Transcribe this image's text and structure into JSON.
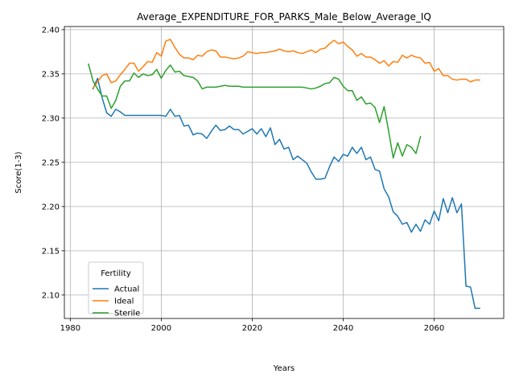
{
  "chart_data": {
    "type": "line",
    "title": "Average_EXPENDITURE_FOR_PARKS_Male_Below_Average_IQ",
    "xlabel": "Years",
    "ylabel": "Score(1-3)",
    "xlim": [
      1978.7,
      2075.3
    ],
    "ylim": [
      2.0735,
      2.4035
    ],
    "x_ticks": [
      1980,
      2000,
      2020,
      2040,
      2060
    ],
    "y_ticks": [
      2.1,
      2.15,
      2.2,
      2.25,
      2.3,
      2.35,
      2.4
    ],
    "x_tick_labels": [
      "1980",
      "2000",
      "2020",
      "2040",
      "2060"
    ],
    "y_tick_labels": [
      "2.10",
      "2.15",
      "2.20",
      "2.25",
      "2.30",
      "2.35",
      "2.40"
    ],
    "grid": true,
    "legend": {
      "title": "Fertility",
      "placement": "lower-left"
    },
    "series": [
      {
        "name": "Actual",
        "color": "#1f77b4",
        "x": [
          1985,
          1986,
          1987,
          1988,
          1989,
          1990,
          1991,
          1992,
          1993,
          1994,
          1995,
          1996,
          1997,
          1998,
          1999,
          2000,
          2001,
          2002,
          2003,
          2004,
          2005,
          2006,
          2007,
          2008,
          2009,
          2010,
          2011,
          2012,
          2013,
          2014,
          2015,
          2016,
          2017,
          2018,
          2019,
          2020,
          2021,
          2022,
          2023,
          2024,
          2025,
          2026,
          2027,
          2028,
          2029,
          2030,
          2031,
          2032,
          2033,
          2034,
          2035,
          2036,
          2037,
          2038,
          2039,
          2040,
          2041,
          2042,
          2043,
          2044,
          2045,
          2046,
          2047,
          2048,
          2049,
          2050,
          2051,
          2052,
          2053,
          2054,
          2055,
          2056,
          2057,
          2058,
          2059,
          2060,
          2061,
          2062,
          2063,
          2064,
          2065,
          2066,
          2067,
          2068,
          2069,
          2070
        ],
        "values": [
          2.333,
          2.345,
          2.323,
          2.306,
          2.302,
          2.31,
          2.307,
          2.303,
          2.303,
          2.303,
          2.303,
          2.303,
          2.303,
          2.303,
          2.303,
          2.303,
          2.302,
          2.31,
          2.302,
          2.303,
          2.291,
          2.292,
          2.281,
          2.283,
          2.282,
          2.277,
          2.285,
          2.292,
          2.286,
          2.287,
          2.291,
          2.287,
          2.287,
          2.282,
          2.285,
          2.288,
          2.282,
          2.288,
          2.279,
          2.289,
          2.27,
          2.276,
          2.265,
          2.267,
          2.253,
          2.257,
          2.253,
          2.249,
          2.239,
          2.231,
          2.231,
          2.232,
          2.245,
          2.256,
          2.251,
          2.259,
          2.257,
          2.267,
          2.26,
          2.267,
          2.253,
          2.256,
          2.242,
          2.24,
          2.22,
          2.211,
          2.194,
          2.189,
          2.18,
          2.182,
          2.171,
          2.18,
          2.172,
          2.185,
          2.18,
          2.195,
          2.184,
          2.209,
          2.193,
          2.21,
          2.193,
          2.203,
          2.11,
          2.109,
          2.085,
          2.085
        ]
      },
      {
        "name": "Ideal",
        "color": "#ff7f0e",
        "x": [
          1985,
          1986,
          1987,
          1988,
          1989,
          1990,
          1991,
          1992,
          1993,
          1994,
          1995,
          1996,
          1997,
          1998,
          1999,
          2000,
          2001,
          2002,
          2003,
          2004,
          2005,
          2006,
          2007,
          2008,
          2009,
          2010,
          2011,
          2012,
          2013,
          2014,
          2015,
          2016,
          2017,
          2018,
          2019,
          2020,
          2021,
          2022,
          2023,
          2024,
          2025,
          2026,
          2027,
          2028,
          2029,
          2030,
          2031,
          2032,
          2033,
          2034,
          2035,
          2036,
          2037,
          2038,
          2039,
          2040,
          2041,
          2042,
          2043,
          2044,
          2045,
          2046,
          2047,
          2048,
          2049,
          2050,
          2051,
          2052,
          2053,
          2054,
          2055,
          2056,
          2057,
          2058,
          2059,
          2060,
          2061,
          2062,
          2063,
          2064,
          2065,
          2066,
          2067,
          2068,
          2069,
          2070
        ],
        "values": [
          2.334,
          2.341,
          2.348,
          2.35,
          2.34,
          2.342,
          2.349,
          2.355,
          2.362,
          2.362,
          2.353,
          2.358,
          2.364,
          2.363,
          2.374,
          2.37,
          2.387,
          2.389,
          2.38,
          2.372,
          2.368,
          2.368,
          2.366,
          2.371,
          2.37,
          2.375,
          2.377,
          2.376,
          2.369,
          2.369,
          2.368,
          2.367,
          2.368,
          2.37,
          2.375,
          2.374,
          2.373,
          2.374,
          2.374,
          2.375,
          2.376,
          2.378,
          2.376,
          2.375,
          2.376,
          2.374,
          2.373,
          2.375,
          2.377,
          2.374,
          2.378,
          2.379,
          2.384,
          2.388,
          2.384,
          2.386,
          2.381,
          2.377,
          2.37,
          2.373,
          2.369,
          2.369,
          2.366,
          2.362,
          2.365,
          2.359,
          2.364,
          2.363,
          2.371,
          2.368,
          2.371,
          2.369,
          2.368,
          2.362,
          2.363,
          2.353,
          2.356,
          2.348,
          2.348,
          2.344,
          2.343,
          2.344,
          2.344,
          2.341,
          2.343,
          2.343
        ]
      },
      {
        "name": "Sterile",
        "color": "#2ca02c",
        "x": [
          1984,
          1985,
          1986,
          1987,
          1988,
          1989,
          1990,
          1991,
          1992,
          1993,
          1994,
          1995,
          1996,
          1997,
          1998,
          1999,
          2000,
          2001,
          2002,
          2003,
          2004,
          2005,
          2006,
          2007,
          2008,
          2009,
          2010,
          2011,
          2012,
          2013,
          2014,
          2015,
          2016,
          2017,
          2018,
          2019,
          2020,
          2021,
          2022,
          2023,
          2024,
          2025,
          2026,
          2027,
          2028,
          2029,
          2030,
          2031,
          2032,
          2033,
          2034,
          2035,
          2036,
          2037,
          2038,
          2039,
          2040,
          2041,
          2042,
          2043,
          2044,
          2045,
          2046,
          2047,
          2048,
          2049,
          2050,
          2051,
          2052,
          2053,
          2054,
          2055,
          2056,
          2057
        ],
        "values": [
          2.361,
          2.342,
          2.333,
          2.325,
          2.325,
          2.311,
          2.32,
          2.336,
          2.342,
          2.342,
          2.351,
          2.346,
          2.35,
          2.348,
          2.349,
          2.355,
          2.345,
          2.354,
          2.36,
          2.352,
          2.353,
          2.348,
          2.347,
          2.346,
          2.342,
          2.333,
          2.335,
          2.335,
          2.335,
          2.336,
          2.337,
          2.336,
          2.336,
          2.336,
          2.335,
          2.335,
          2.335,
          2.335,
          2.335,
          2.335,
          2.335,
          2.335,
          2.335,
          2.335,
          2.335,
          2.335,
          2.335,
          2.335,
          2.334,
          2.333,
          2.334,
          2.336,
          2.339,
          2.34,
          2.346,
          2.344,
          2.336,
          2.331,
          2.331,
          2.32,
          2.324,
          2.316,
          2.317,
          2.312,
          2.295,
          2.313,
          2.285,
          2.255,
          2.272,
          2.257,
          2.27,
          2.267,
          2.26,
          2.279
        ]
      }
    ]
  }
}
